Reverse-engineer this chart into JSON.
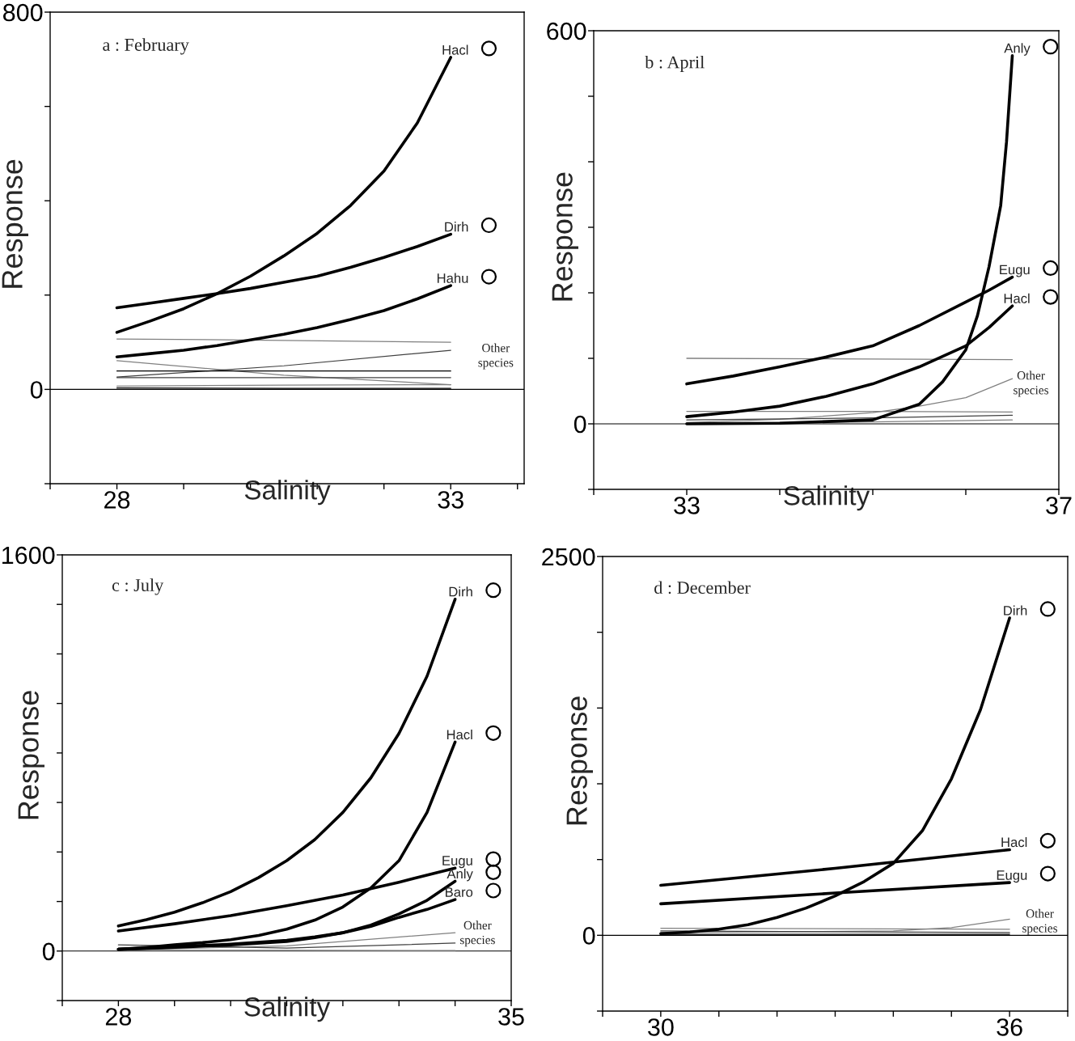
{
  "chart_data": [
    {
      "type": "line",
      "title": "a : February",
      "xlabel": "Salinity",
      "ylabel": "Response",
      "xlim": [
        27,
        34.1
      ],
      "ylim": [
        -200,
        800
      ],
      "xticks": [
        {
          "value": 27,
          "label": null
        },
        28,
        {
          "value": 29,
          "label": null
        },
        {
          "value": 30,
          "label": null
        },
        {
          "value": 31,
          "label": null
        },
        {
          "value": 32,
          "label": null
        },
        33,
        {
          "value": 34,
          "label": null
        }
      ],
      "yticks": [
        {
          "value": -200,
          "label": null
        },
        0,
        {
          "value": 200,
          "label": null
        },
        {
          "value": 400,
          "label": null
        },
        {
          "value": 600,
          "label": null
        },
        800
      ],
      "grid": false,
      "legend": "right",
      "ref_lines": [
        {
          "axis": "y",
          "value": 0
        }
      ],
      "annotations": [
        "Other\nspecies"
      ],
      "series": [
        {
          "name": "Hacl",
          "color": "#000000",
          "x": [
            28,
            28.5,
            29,
            29.5,
            30,
            30.5,
            31,
            31.5,
            32,
            32.5,
            33
          ],
          "values": [
            121,
            145,
            171,
            203,
            240,
            283,
            331,
            390,
            463,
            565,
            704
          ]
        },
        {
          "name": "Dirh",
          "color": "#000000",
          "x": [
            28,
            28.5,
            29,
            29.5,
            30,
            30.5,
            31,
            31.5,
            32,
            32.5,
            33
          ],
          "values": [
            173,
            183,
            193,
            203,
            214,
            227,
            240,
            259,
            280,
            303,
            329
          ]
        },
        {
          "name": "Hahu",
          "color": "#000000",
          "x": [
            28,
            28.5,
            29,
            29.5,
            30,
            30.5,
            31,
            31.5,
            32,
            32.5,
            33
          ],
          "values": [
            69,
            76,
            83,
            93,
            105,
            117,
            131,
            148,
            167,
            192,
            220
          ]
        },
        {
          "color": "#808080",
          "x": [
            28,
            30.5,
            33
          ],
          "values": [
            107,
            104,
            100
          ]
        },
        {
          "color": "#808080",
          "x": [
            28,
            30.5,
            33
          ],
          "values": [
            61,
            30,
            10
          ]
        },
        {
          "color": "#404040",
          "x": [
            28,
            30.5,
            33
          ],
          "values": [
            26,
            50,
            83
          ]
        },
        {
          "color": "#000000",
          "x": [
            28,
            30.5,
            33
          ],
          "values": [
            39,
            39,
            39
          ]
        },
        {
          "color": "#404040",
          "x": [
            28,
            30.5,
            33
          ],
          "values": [
            25,
            25,
            25
          ]
        },
        {
          "color": "#808080",
          "x": [
            28,
            30.5,
            33
          ],
          "values": [
            7,
            9,
            10
          ]
        },
        {
          "color": "#000000",
          "x": [
            28,
            30.5,
            33
          ],
          "values": [
            3,
            2,
            2
          ]
        }
      ]
    },
    {
      "type": "line",
      "title": "b : April",
      "xlabel": "Salinity",
      "ylabel": "Response",
      "xlim": [
        32,
        37
      ],
      "ylim": [
        -100,
        600
      ],
      "xticks": [
        {
          "value": 32,
          "label": null
        },
        33,
        {
          "value": 34,
          "label": null
        },
        {
          "value": 35,
          "label": null
        },
        {
          "value": 36,
          "label": null
        },
        37
      ],
      "yticks": [
        {
          "value": -100,
          "label": null
        },
        0,
        {
          "value": 100,
          "label": null
        },
        {
          "value": 200,
          "label": null
        },
        {
          "value": 300,
          "label": null
        },
        {
          "value": 400,
          "label": null
        },
        {
          "value": 500,
          "label": null
        },
        600
      ],
      "grid": false,
      "legend": "right",
      "ref_lines": [
        {
          "axis": "y",
          "value": 0
        }
      ],
      "annotations": [
        "Other\nspecies"
      ],
      "series": [
        {
          "name": "Anly",
          "color": "#000000",
          "x": [
            33,
            34,
            35,
            35.5,
            35.75,
            36,
            36.125,
            36.25,
            36.375,
            36.4375,
            36.5
          ],
          "values": [
            0,
            1,
            6,
            30,
            64,
            113,
            165,
            240,
            333,
            430,
            562
          ]
        },
        {
          "name": "Eugu",
          "color": "#000000",
          "x": [
            33,
            33.5,
            34,
            34.5,
            35,
            35.5,
            36,
            36.25,
            36.5
          ],
          "values": [
            61,
            73,
            87,
            102,
            119,
            150,
            186,
            204,
            224
          ]
        },
        {
          "name": "Hacl",
          "color": "#000000",
          "x": [
            33,
            33.5,
            34,
            34.5,
            35,
            35.5,
            36,
            36.25,
            36.5
          ],
          "values": [
            11,
            18,
            27,
            42,
            61,
            87,
            119,
            147,
            180
          ]
        },
        {
          "color": "#808080",
          "x": [
            33,
            35,
            36.5
          ],
          "values": [
            100,
            99,
            98
          ]
        },
        {
          "color": "#808080",
          "x": [
            33,
            34,
            35,
            35.5,
            36,
            36.5
          ],
          "values": [
            2,
            7,
            17,
            27,
            40,
            69
          ]
        },
        {
          "color": "#808080",
          "x": [
            33,
            35,
            36.5
          ],
          "values": [
            19,
            19,
            18
          ]
        },
        {
          "color": "#404040",
          "x": [
            33,
            35,
            36.5
          ],
          "values": [
            6,
            9,
            13
          ]
        },
        {
          "color": "#808080",
          "x": [
            33,
            35,
            36.5
          ],
          "values": [
            1,
            3,
            6
          ]
        }
      ]
    },
    {
      "type": "line",
      "title": "c : July",
      "xlabel": "Salinity",
      "ylabel": "Response",
      "xlim": [
        27,
        35
      ],
      "ylim": [
        -200,
        1600
      ],
      "xticks": [
        {
          "value": 27,
          "label": null
        },
        28,
        {
          "value": 29,
          "label": null
        },
        {
          "value": 30,
          "label": null
        },
        {
          "value": 31,
          "label": null
        },
        {
          "value": 32,
          "label": null
        },
        {
          "value": 33,
          "label": null
        },
        {
          "value": 34,
          "label": null
        },
        35
      ],
      "yticks": [
        {
          "value": -200,
          "label": null
        },
        0,
        {
          "value": 200,
          "label": null
        },
        {
          "value": 400,
          "label": null
        },
        {
          "value": 600,
          "label": null
        },
        {
          "value": 800,
          "label": null
        },
        {
          "value": 1000,
          "label": null
        },
        {
          "value": 1200,
          "label": null
        },
        {
          "value": 1400,
          "label": null
        },
        1600
      ],
      "grid": false,
      "legend": "right",
      "ref_lines": [
        {
          "axis": "y",
          "value": 0
        }
      ],
      "annotations": [
        "Other\nspecies"
      ],
      "series": [
        {
          "name": "Dirh",
          "color": "#000000",
          "x": [
            28,
            28.5,
            29,
            29.5,
            30,
            30.5,
            31,
            31.5,
            32,
            32.5,
            33,
            33.5,
            34
          ],
          "values": [
            101,
            127,
            157,
            195,
            240,
            297,
            365,
            450,
            560,
            700,
            879,
            1110,
            1421
          ]
        },
        {
          "name": "Hacl",
          "color": "#000000",
          "x": [
            28,
            28.5,
            29,
            29.5,
            30,
            30.5,
            31,
            31.5,
            32,
            32.5,
            33,
            33.5,
            34
          ],
          "values": [
            7,
            15,
            25,
            34,
            46,
            63,
            88,
            125,
            178,
            255,
            365,
            560,
            844
          ]
        },
        {
          "name": "Eugu",
          "color": "#000000",
          "x": [
            28,
            29,
            30,
            31,
            32,
            33,
            34
          ],
          "values": [
            81,
            110,
            143,
            183,
            226,
            278,
            335
          ]
        },
        {
          "name": "Anly",
          "color": "#000000",
          "x": [
            28,
            29,
            30,
            31,
            31.5,
            32,
            32.5,
            33,
            33.5,
            34
          ],
          "values": [
            7,
            15,
            25,
            39,
            54,
            74,
            105,
            150,
            205,
            282
          ]
        },
        {
          "name": "Baro",
          "color": "#000000",
          "x": [
            28,
            29,
            30,
            31,
            31.5,
            32,
            32.5,
            33,
            33.5,
            34
          ],
          "values": [
            7,
            17,
            28,
            43,
            57,
            74,
            100,
            136,
            168,
            208
          ]
        },
        {
          "color": "#808080",
          "x": [
            28,
            31,
            34
          ],
          "values": [
            4,
            21,
            74
          ]
        },
        {
          "color": "#404040",
          "x": [
            28,
            31,
            34
          ],
          "values": [
            25,
            12,
            32
          ]
        },
        {
          "color": "#808080",
          "x": [
            28,
            31,
            34
          ],
          "values": [
            3,
            3,
            2
          ]
        }
      ]
    },
    {
      "type": "line",
      "title": "d : December",
      "ylabel": "Response",
      "xlim": [
        29,
        37
      ],
      "ylim": [
        -500,
        2500
      ],
      "xticks": [
        {
          "value": 29,
          "label": null
        },
        30,
        {
          "value": 31,
          "label": null
        },
        {
          "value": 32,
          "label": null
        },
        {
          "value": 33,
          "label": null
        },
        {
          "value": 34,
          "label": null
        },
        {
          "value": 35,
          "label": null
        },
        36,
        {
          "value": 37,
          "label": null
        }
      ],
      "yticks": [
        {
          "value": -500,
          "label": null
        },
        0,
        {
          "value": 500,
          "label": null
        },
        {
          "value": 1000,
          "label": null
        },
        {
          "value": 1500,
          "label": null
        },
        {
          "value": 2000,
          "label": null
        },
        2500
      ],
      "grid": false,
      "legend": "right",
      "ref_lines": [
        {
          "axis": "y",
          "value": 0
        }
      ],
      "annotations": [
        "Other\nspecies"
      ],
      "series": [
        {
          "name": "Dirh",
          "color": "#000000",
          "x": [
            30,
            30.5,
            31,
            31.5,
            32,
            32.5,
            33,
            33.5,
            34,
            34.5,
            35,
            35.5,
            36
          ],
          "values": [
            11,
            22,
            40,
            70,
            118,
            180,
            260,
            355,
            475,
            690,
            1033,
            1490,
            2094
          ]
        },
        {
          "name": "Hacl",
          "color": "#000000",
          "x": [
            30,
            33,
            36
          ],
          "values": [
            330,
            442,
            565
          ]
        },
        {
          "name": "Eugu",
          "color": "#000000",
          "x": [
            30,
            33,
            36
          ],
          "values": [
            208,
            279,
            348
          ]
        },
        {
          "color": "#808080",
          "x": [
            30,
            34,
            35,
            36
          ],
          "values": [
            18,
            29,
            51,
            107
          ]
        },
        {
          "color": "#808080",
          "x": [
            30,
            36
          ],
          "values": [
            47,
            40
          ]
        },
        {
          "color": "#404040",
          "x": [
            30,
            36
          ],
          "values": [
            29,
            18
          ]
        },
        {
          "color": "#000000",
          "x": [
            30,
            36
          ],
          "values": [
            7,
            7
          ]
        }
      ]
    }
  ]
}
